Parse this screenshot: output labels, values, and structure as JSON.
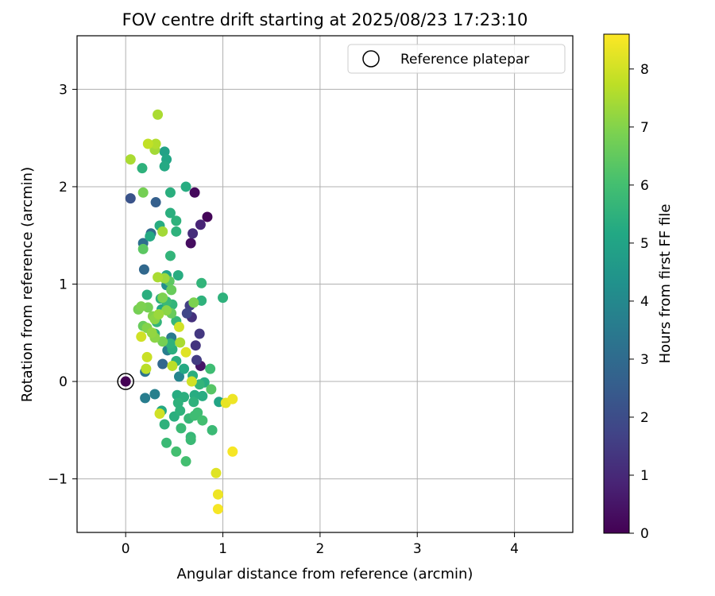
{
  "chart_data": {
    "type": "scatter",
    "title": "FOV centre drift starting at 2025/08/23 17:23:10",
    "xlabel": "Angular distance from reference (arcmin)",
    "ylabel": "Rotation from reference (arcmin)",
    "xlim": [
      -0.5,
      4.6
    ],
    "ylim": [
      -1.55,
      3.55
    ],
    "xticks": [
      0,
      1,
      2,
      3,
      4
    ],
    "yticks": [
      -1,
      0,
      1,
      2,
      3
    ],
    "xtick_labels": [
      "0",
      "1",
      "2",
      "3",
      "4"
    ],
    "ytick_labels": [
      "−1",
      "0",
      "1",
      "2",
      "3"
    ],
    "grid": true,
    "legend": {
      "position": "top-right",
      "entries": [
        {
          "label": "Reference platepar",
          "marker": "hollow-circle",
          "x": 0,
          "y": 0
        }
      ]
    },
    "colorbar": {
      "label": "Hours from first FF file",
      "range": [
        0,
        8.6
      ],
      "ticks": [
        0,
        1,
        2,
        3,
        4,
        5,
        6,
        7,
        8
      ],
      "tick_labels": [
        "0",
        "1",
        "2",
        "3",
        "4",
        "5",
        "6",
        "7",
        "8"
      ],
      "colormap": "viridis"
    },
    "series": [
      {
        "points": [
          [
            0.0,
            0.0,
            0.0
          ],
          [
            0.84,
            1.69,
            0.1
          ],
          [
            0.71,
            1.94,
            0.2
          ],
          [
            0.67,
            1.42,
            0.3
          ],
          [
            0.77,
            1.61,
            0.9
          ],
          [
            0.69,
            1.52,
            1.1
          ],
          [
            0.77,
            0.16,
            0.5
          ],
          [
            0.68,
            0.66,
            1.2
          ],
          [
            0.72,
            0.37,
            1.3
          ],
          [
            0.76,
            0.49,
            1.4
          ],
          [
            0.66,
            0.78,
            1.6
          ],
          [
            0.63,
            0.7,
            1.8
          ],
          [
            0.73,
            0.22,
            1.5
          ],
          [
            0.05,
            1.88,
            2.2
          ],
          [
            0.31,
            1.84,
            2.6
          ],
          [
            0.19,
            1.15,
            2.9
          ],
          [
            0.26,
            1.52,
            3.0
          ],
          [
            0.18,
            1.42,
            3.1
          ],
          [
            0.38,
            0.18,
            2.9
          ],
          [
            0.2,
            0.1,
            3.3
          ],
          [
            0.2,
            -0.17,
            3.6
          ],
          [
            0.3,
            -0.13,
            3.7
          ],
          [
            0.43,
            0.32,
            3.6
          ],
          [
            0.47,
            0.45,
            3.5
          ],
          [
            0.55,
            0.05,
            3.9
          ],
          [
            0.42,
            0.99,
            4.2
          ],
          [
            0.4,
            2.36,
            4.9
          ],
          [
            0.42,
            2.28,
            5.1
          ],
          [
            0.4,
            2.21,
            5.2
          ],
          [
            0.46,
            1.94,
            5.4
          ],
          [
            0.62,
            2.0,
            5.3
          ],
          [
            0.17,
            2.19,
            5.5
          ],
          [
            0.46,
            1.73,
            5.4
          ],
          [
            0.52,
            1.65,
            5.5
          ],
          [
            0.52,
            1.54,
            5.5
          ],
          [
            0.35,
            1.6,
            5.3
          ],
          [
            0.25,
            1.49,
            5.2
          ],
          [
            0.46,
            1.29,
            5.6
          ],
          [
            0.54,
            1.09,
            5.3
          ],
          [
            0.42,
            1.09,
            5.0
          ],
          [
            0.22,
            0.89,
            5.4
          ],
          [
            0.48,
            0.79,
            5.6
          ],
          [
            0.36,
            0.85,
            5.5
          ],
          [
            0.42,
            0.82,
            5.8
          ],
          [
            0.37,
            0.74,
            5.1
          ],
          [
            0.32,
            0.61,
            5.6
          ],
          [
            0.52,
            0.21,
            5.4
          ],
          [
            0.46,
            0.39,
            5.5
          ],
          [
            0.6,
            0.13,
            5.2
          ],
          [
            0.48,
            0.33,
            5.4
          ],
          [
            0.69,
            0.06,
            5.4
          ],
          [
            0.52,
            0.62,
            5.7
          ],
          [
            0.3,
            0.49,
            5.5
          ],
          [
            1.0,
            0.86,
            5.5
          ],
          [
            0.78,
            1.01,
            5.6
          ],
          [
            0.78,
            0.83,
            5.5
          ],
          [
            0.87,
            0.13,
            5.9
          ],
          [
            0.76,
            -0.03,
            5.6
          ],
          [
            0.81,
            -0.01,
            5.3
          ],
          [
            0.79,
            -0.15,
            5.3
          ],
          [
            0.96,
            -0.21,
            5.0
          ],
          [
            0.71,
            -0.14,
            5.3
          ],
          [
            0.6,
            -0.16,
            5.4
          ],
          [
            0.53,
            -0.14,
            5.3
          ],
          [
            0.7,
            -0.21,
            5.5
          ],
          [
            0.54,
            -0.22,
            5.5
          ],
          [
            0.56,
            -0.3,
            5.5
          ],
          [
            0.65,
            -0.38,
            5.7
          ],
          [
            0.71,
            -0.35,
            5.9
          ],
          [
            0.74,
            -0.32,
            5.9
          ],
          [
            0.79,
            -0.4,
            6.0
          ],
          [
            0.37,
            -0.3,
            5.2
          ],
          [
            0.5,
            -0.36,
            5.4
          ],
          [
            0.4,
            -0.44,
            5.5
          ],
          [
            0.57,
            -0.48,
            5.8
          ],
          [
            0.67,
            -0.57,
            5.7
          ],
          [
            0.67,
            -0.6,
            5.8
          ],
          [
            0.89,
            -0.5,
            5.8
          ],
          [
            0.42,
            -0.63,
            5.8
          ],
          [
            0.52,
            -0.72,
            6.0
          ],
          [
            0.62,
            -0.82,
            6.0
          ],
          [
            0.18,
            1.94,
            6.8
          ],
          [
            0.18,
            1.36,
            6.4
          ],
          [
            0.38,
            1.54,
            7.4
          ],
          [
            0.33,
            2.74,
            7.5
          ],
          [
            0.05,
            2.28,
            7.5
          ],
          [
            0.23,
            2.44,
            7.8
          ],
          [
            0.31,
            2.44,
            7.6
          ],
          [
            0.3,
            2.38,
            7.4
          ],
          [
            0.33,
            1.07,
            7.5
          ],
          [
            0.4,
            1.06,
            7.3
          ],
          [
            0.45,
            1.03,
            6.4
          ],
          [
            0.47,
            0.94,
            6.6
          ],
          [
            0.38,
            0.86,
            6.9
          ],
          [
            0.13,
            0.74,
            6.8
          ],
          [
            0.16,
            0.77,
            6.9
          ],
          [
            0.23,
            0.76,
            6.8
          ],
          [
            0.28,
            0.67,
            7.0
          ],
          [
            0.34,
            0.69,
            7.3
          ],
          [
            0.3,
            0.64,
            7.1
          ],
          [
            0.42,
            0.73,
            7.1
          ],
          [
            0.47,
            0.7,
            6.6
          ],
          [
            0.7,
            0.81,
            6.9
          ],
          [
            0.18,
            0.57,
            6.6
          ],
          [
            0.22,
            0.55,
            7.0
          ],
          [
            0.27,
            0.5,
            7.2
          ],
          [
            0.3,
            0.45,
            7.1
          ],
          [
            0.16,
            0.46,
            8.0
          ],
          [
            0.38,
            0.41,
            6.8
          ],
          [
            0.56,
            0.4,
            7.5
          ],
          [
            0.55,
            0.56,
            8.0
          ],
          [
            0.62,
            0.3,
            8.2
          ],
          [
            0.22,
            0.25,
            7.9
          ],
          [
            0.21,
            0.13,
            7.7
          ],
          [
            0.48,
            0.16,
            7.7
          ],
          [
            0.68,
            0.0,
            8.0
          ],
          [
            0.35,
            -0.33,
            8.0
          ],
          [
            0.88,
            -0.08,
            6.3
          ],
          [
            0.93,
            -0.94,
            8.2
          ],
          [
            0.95,
            -1.16,
            8.4
          ],
          [
            0.95,
            -1.31,
            8.5
          ],
          [
            1.03,
            -0.22,
            8.3
          ],
          [
            1.1,
            -0.18,
            8.4
          ],
          [
            1.1,
            -0.72,
            8.5
          ]
        ]
      }
    ]
  }
}
